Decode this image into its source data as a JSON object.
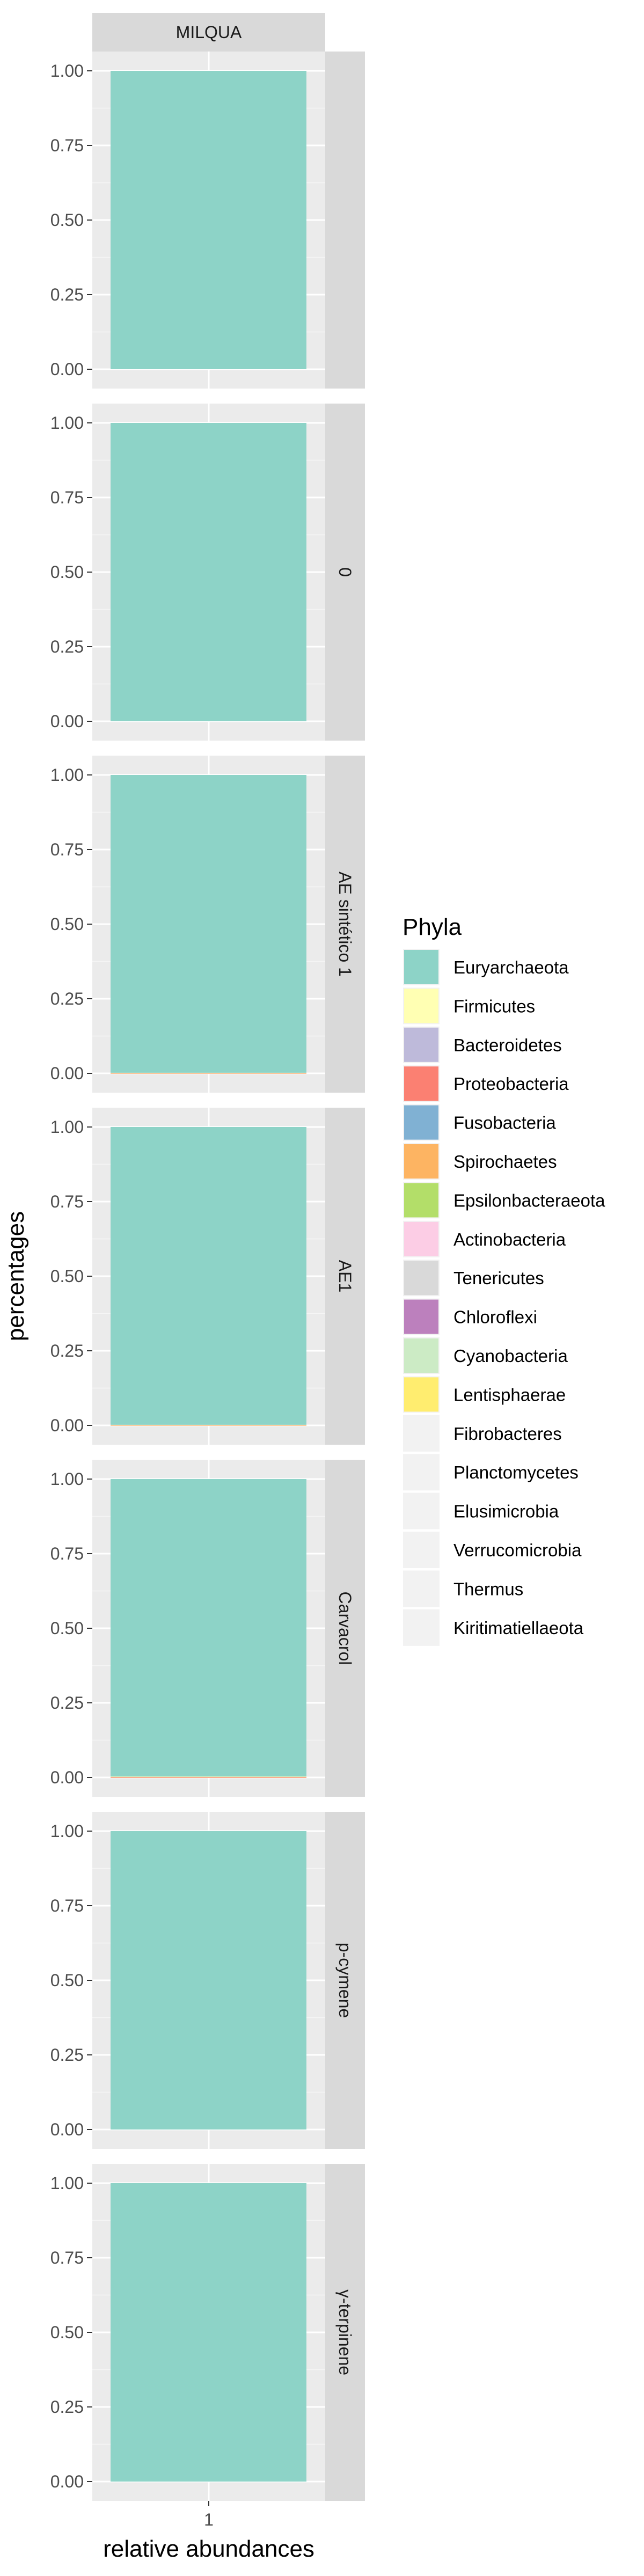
{
  "chart_data": {
    "type": "bar",
    "stacked": true,
    "column_strip": "MILQUA",
    "row_strips": [
      "",
      "0",
      "AE sintético 1",
      "AE1",
      "Carvacrol",
      "p-cymene",
      "γ-terpinene"
    ],
    "categories": [
      "1"
    ],
    "xlabel": "relative abundances",
    "ylabel": "percentages",
    "ylim": [
      0,
      1
    ],
    "yticks": [
      "0.00",
      "0.25",
      "0.50",
      "0.75",
      "1.00"
    ],
    "legend_position": "right",
    "legend_title": "Phyla",
    "phyla": [
      {
        "name": "Euryarchaeota",
        "color": "#8DD3C7"
      },
      {
        "name": "Firmicutes",
        "color": "#FFFFB3"
      },
      {
        "name": "Bacteroidetes",
        "color": "#BEBADA"
      },
      {
        "name": "Proteobacteria",
        "color": "#FB8072"
      },
      {
        "name": "Fusobacteria",
        "color": "#80B1D3"
      },
      {
        "name": "Spirochaetes",
        "color": "#FDB462"
      },
      {
        "name": "Epsilonbacteraeota",
        "color": "#B3DE69"
      },
      {
        "name": "Actinobacteria",
        "color": "#FCCDE5"
      },
      {
        "name": "Tenericutes",
        "color": "#D9D9D9"
      },
      {
        "name": "Chloroflexi",
        "color": "#BC80BD"
      },
      {
        "name": "Cyanobacteria",
        "color": "#CCEBC5"
      },
      {
        "name": "Lentisphaerae",
        "color": "#FFED6F"
      },
      {
        "name": "Fibrobacteres",
        "color": "#F2F2F2"
      },
      {
        "name": "Planctomycetes",
        "color": "#F2F2F2"
      },
      {
        "name": "Elusimicrobia",
        "color": "#F2F2F2"
      },
      {
        "name": "Verrucomicrobia",
        "color": "#F2F2F2"
      },
      {
        "name": "Thermus",
        "color": "#F2F2F2"
      },
      {
        "name": "Kiritimatiellaeota",
        "color": "#F2F2F2"
      }
    ],
    "series": [
      {
        "name": "Euryarchaeota",
        "values_by_panel": [
          1.0,
          1.0,
          0.998,
          0.998,
          0.997,
          1.0,
          1.0
        ]
      },
      {
        "name": "Firmicutes",
        "values_by_panel": [
          0.0,
          0.0,
          0.001,
          0.001,
          0.002,
          0.0,
          0.0
        ]
      },
      {
        "name": "Proteobacteria",
        "values_by_panel": [
          0.0,
          0.0,
          0.001,
          0.001,
          0.001,
          0.0,
          0.0
        ]
      }
    ]
  }
}
